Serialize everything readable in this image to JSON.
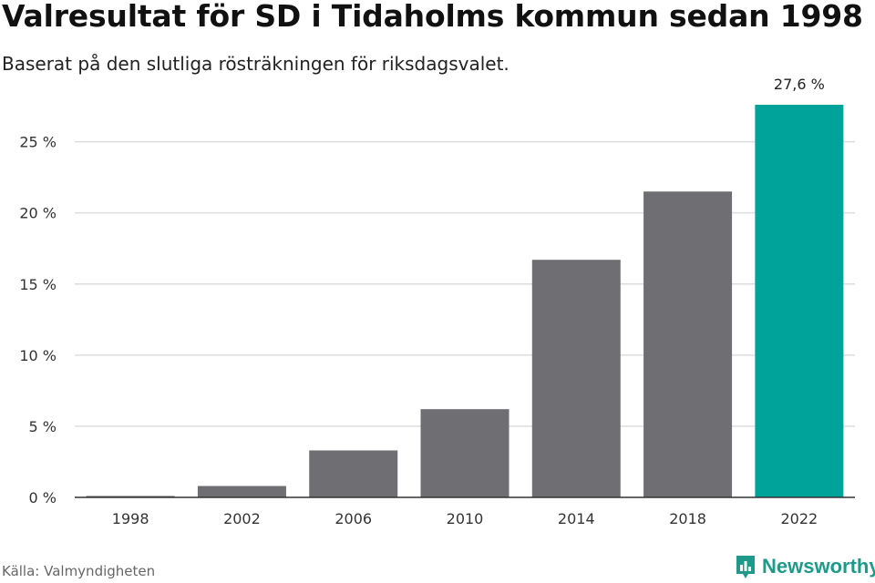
{
  "chart_data": {
    "type": "bar",
    "title": "Valresultat för SD i Tidaholms kommun sedan 1998",
    "subtitle": "Baserat på den slutliga rösträkningen för riksdagsvalet.",
    "categories": [
      "1998",
      "2002",
      "2006",
      "2010",
      "2014",
      "2018",
      "2022"
    ],
    "values": [
      0.1,
      0.8,
      3.3,
      6.2,
      16.7,
      21.5,
      27.6
    ],
    "highlight_index": 6,
    "highlight_label": "27,6 %",
    "xlabel": "",
    "ylabel": "",
    "ylim": [
      0,
      27.6
    ],
    "yticks": [
      0,
      5,
      10,
      15,
      20,
      25
    ],
    "ytick_labels": [
      "0 %",
      "5 %",
      "10 %",
      "15 %",
      "20 %",
      "25 %"
    ],
    "grid": true,
    "colors": {
      "default": "#6f6e73",
      "highlight": "#00a39a",
      "grid": "#dddddd",
      "axis": "#333333"
    }
  },
  "footer": {
    "source": "Källa: Valmyndigheten",
    "brand": "Newsworthy"
  },
  "icons": {
    "brand_logo": "newsworthy-logo-icon"
  }
}
